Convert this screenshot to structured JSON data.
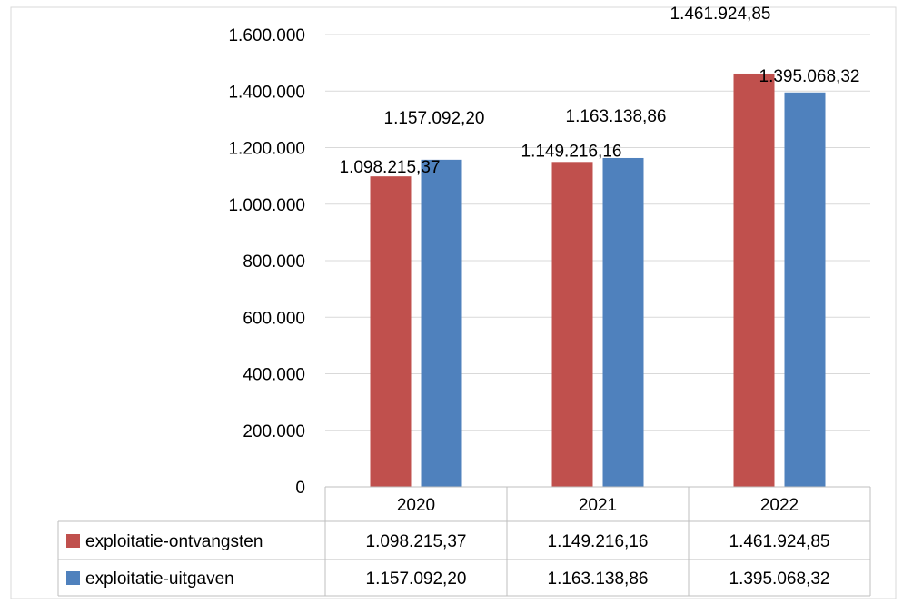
{
  "colors": {
    "series_0": "#C0504D",
    "series_1": "#4F81BD",
    "grid": "#D9D9D9",
    "table_border": "#BFBFBF",
    "frame": "#D9D9D9"
  },
  "chart_data": {
    "type": "bar",
    "title": "",
    "xlabel": "",
    "ylabel": "",
    "ylim": [
      0,
      1600000
    ],
    "yticks": [
      {
        "value": 0,
        "label": "0"
      },
      {
        "value": 200000,
        "label": "200.000"
      },
      {
        "value": 400000,
        "label": "400.000"
      },
      {
        "value": 600000,
        "label": "600.000"
      },
      {
        "value": 800000,
        "label": "800.000"
      },
      {
        "value": 1000000,
        "label": "1.000.000"
      },
      {
        "value": 1200000,
        "label": "1.200.000"
      },
      {
        "value": 1400000,
        "label": "1.400.000"
      },
      {
        "value": 1600000,
        "label": "1.600.000"
      }
    ],
    "grid": true,
    "legend": "data-table",
    "categories": [
      "2020",
      "2021",
      "2022"
    ],
    "series": [
      {
        "name": "exploitatie-ontvangsten",
        "values": [
          1098215.37,
          1149216.16,
          1461924.85
        ],
        "labels": [
          "1.098.215,37",
          "1.149.216,16",
          "1.461.924,85"
        ]
      },
      {
        "name": "exploitatie-uitgaven",
        "values": [
          1157092.2,
          1163138.86,
          1395068.32
        ],
        "labels": [
          "1.157.092,20",
          "1.163.138,86",
          "1.395.068,32"
        ]
      }
    ]
  }
}
